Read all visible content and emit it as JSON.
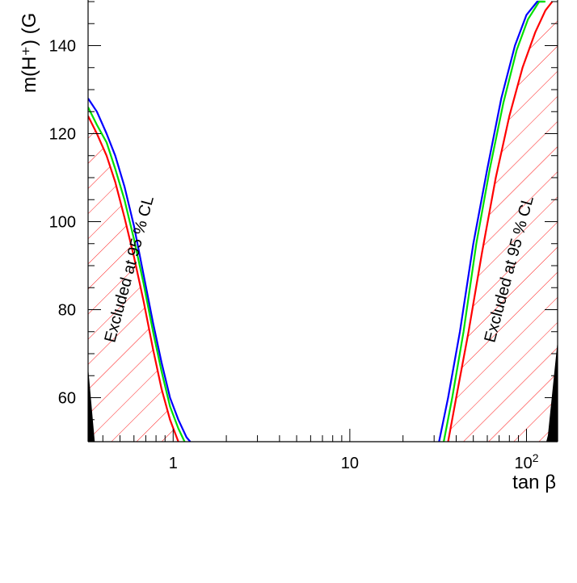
{
  "chart_data": {
    "type": "line",
    "xlabel": "tan β",
    "ylabel": "m(H⁺) (G",
    "xscale": "log",
    "xlim": [
      0.33,
      150
    ],
    "ylim": [
      50,
      150
    ],
    "x_ticks": [
      {
        "value": 1,
        "label": "1"
      },
      {
        "value": 10,
        "label": "10"
      },
      {
        "value": 100,
        "label": "10",
        "sup": "2"
      }
    ],
    "y_ticks": [
      60,
      80,
      100,
      120,
      140
    ],
    "annotations": [
      "Excluded at 95 % CL",
      "Excluded at 95 % CL"
    ],
    "series": [
      {
        "color": "#0000ff",
        "segments": [
          {
            "x": [
              0.33,
              0.37,
              0.42,
              0.47,
              0.53,
              0.6,
              0.68,
              0.77,
              0.86,
              0.96,
              1.07,
              1.19,
              1.25
            ],
            "y": [
              128,
              125,
              120,
              115,
              108,
              99,
              88,
              77,
              68,
              60,
              55,
              51,
              50
            ]
          },
          {
            "x": [
              32,
              36,
              42,
              50,
              60,
              72,
              86,
              100,
              115,
              125
            ],
            "y": [
              50,
              60,
              75,
              95,
              112,
              128,
              140,
              147,
              150,
              150
            ]
          }
        ]
      },
      {
        "color": "#00e000",
        "segments": [
          {
            "x": [
              0.33,
              0.37,
              0.42,
              0.47,
              0.53,
              0.6,
              0.68,
              0.77,
              0.86,
              0.96,
              1.07,
              1.16
            ],
            "y": [
              126,
              122,
              118,
              112,
              105,
              96,
              86,
              75,
              66,
              58,
              53,
              50
            ]
          },
          {
            "x": [
              34,
              38,
              44,
              52,
              62,
              74,
              88,
              102,
              118,
              128
            ],
            "y": [
              50,
              60,
              75,
              95,
              112,
              127,
              139,
              146,
              150,
              150
            ]
          }
        ]
      },
      {
        "color": "#ff0000",
        "segments": [
          {
            "x": [
              0.33,
              0.37,
              0.42,
              0.47,
              0.53,
              0.6,
              0.68,
              0.77,
              0.86,
              0.96,
              1.07
            ],
            "y": [
              124,
              120,
              115,
              109,
              101,
              92,
              82,
              71,
              62,
              55,
              50
            ]
          },
          {
            "x": [
              36,
              40,
              47,
              56,
              67,
              80,
              95,
              112,
              128,
              140
            ],
            "y": [
              50,
              60,
              75,
              93,
              110,
              124,
              135,
              143,
              148,
              150
            ]
          }
        ]
      }
    ],
    "hatched_regions": [
      {
        "color": "#ff0000",
        "side": "left",
        "bounded_by": "red curve"
      },
      {
        "color": "#ff0000",
        "side": "right",
        "bounded_by": "red curve"
      }
    ],
    "filled_regions": [
      {
        "color": "#000000",
        "side": "left",
        "x": [
          0.33,
          0.36
        ],
        "y": [
          50,
          67
        ]
      },
      {
        "color": "#000000",
        "side": "right",
        "x": [
          130,
          150
        ],
        "y": [
          50,
          73
        ]
      }
    ]
  }
}
